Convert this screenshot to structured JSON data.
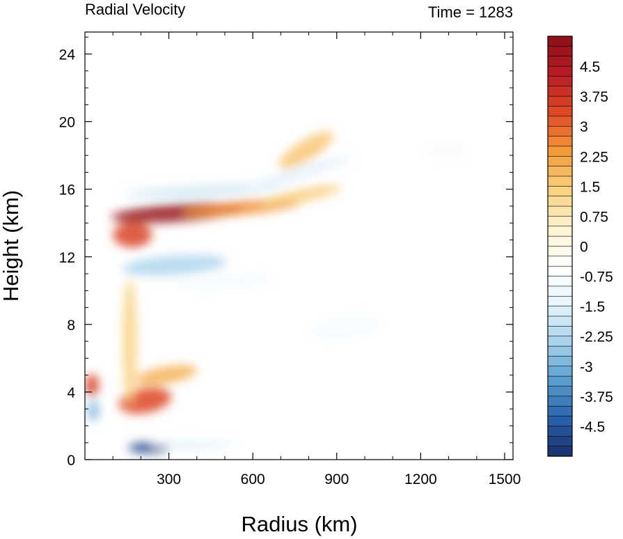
{
  "chart_data": {
    "type": "heatmap",
    "title": "Radial Velocity",
    "right_title": "Time = 1283",
    "xlabel": "Radius (km)",
    "ylabel": "Height (km)",
    "xlim": [
      0,
      1530
    ],
    "ylim": [
      0,
      25.3
    ],
    "x_ticks": [
      300,
      600,
      900,
      1200,
      1500
    ],
    "x_tick_labels": [
      "300",
      "600",
      "900",
      "1200",
      "1500"
    ],
    "y_ticks": [
      0,
      4,
      8,
      12,
      16,
      20,
      24
    ],
    "y_tick_labels": [
      "0",
      "4",
      "8",
      "12",
      "16",
      "20",
      "24"
    ],
    "colorbar": {
      "min": -5.25,
      "max": 5.25,
      "step": 0.25,
      "tick_values": [
        4.5,
        3.75,
        3,
        2.25,
        1.5,
        0.75,
        0,
        -0.75,
        -1.5,
        -2.25,
        -3,
        -3.75,
        -4.5
      ],
      "tick_labels": [
        "4.5",
        "3.75",
        "3",
        "2.25",
        "1.5",
        "0.75",
        "0",
        "-0.75",
        "-1.5",
        "-2.25",
        "-3",
        "-3.75",
        "-4.5"
      ],
      "stops": [
        "#1a2f6b",
        "#2a62ad",
        "#5a9fd1",
        "#a9d3ec",
        "#e8f4fb",
        "#ffffff",
        "#fdf3cf",
        "#f9d07e",
        "#f39a3a",
        "#e04a26",
        "#b81c24",
        "#8b1119"
      ]
    },
    "features": [
      {
        "name": "upper outflow jet",
        "x": 330,
        "y": 14.6,
        "value": 5.0
      },
      {
        "name": "outflow jet tail",
        "x": 560,
        "y": 14.9,
        "value": 2.5
      },
      {
        "name": "outflow jet far tail",
        "x": 770,
        "y": 15.6,
        "value": 1.5
      },
      {
        "name": "inflow band above jet",
        "x": 420,
        "y": 15.9,
        "value": -1.8
      },
      {
        "name": "upper outer inflow",
        "x": 760,
        "y": 16.9,
        "value": -1.5
      },
      {
        "name": "top outflow streak",
        "x": 790,
        "y": 18.3,
        "value": 1.6
      },
      {
        "name": "inner upper outflow",
        "x": 170,
        "y": 13.3,
        "value": 3.5
      },
      {
        "name": "mid-level inflow",
        "x": 320,
        "y": 11.5,
        "value": -2.3
      },
      {
        "name": "mid-level inflow tail",
        "x": 500,
        "y": 10.5,
        "value": -0.9
      },
      {
        "name": "outer mid inflow",
        "x": 930,
        "y": 7.8,
        "value": -0.8
      },
      {
        "name": "high outer inflow",
        "x": 1290,
        "y": 18.2,
        "value": -0.7
      },
      {
        "name": "low-level outflow",
        "x": 215,
        "y": 3.5,
        "value": 3.4
      },
      {
        "name": "low-level outflow upper",
        "x": 290,
        "y": 5.0,
        "value": 2.0
      },
      {
        "name": "inner-core outflow",
        "x": 25,
        "y": 4.4,
        "value": 3.6
      },
      {
        "name": "inner-core inflow",
        "x": 30,
        "y": 2.9,
        "value": -2.8
      },
      {
        "name": "boundary layer inflow",
        "x": 230,
        "y": 0.7,
        "value": -4.8
      },
      {
        "name": "boundary layer inflow tail",
        "x": 380,
        "y": 0.9,
        "value": -1.5
      },
      {
        "name": "eyewall updraft outflow",
        "x": 160,
        "y": 7.0,
        "value": 1.4
      }
    ]
  }
}
